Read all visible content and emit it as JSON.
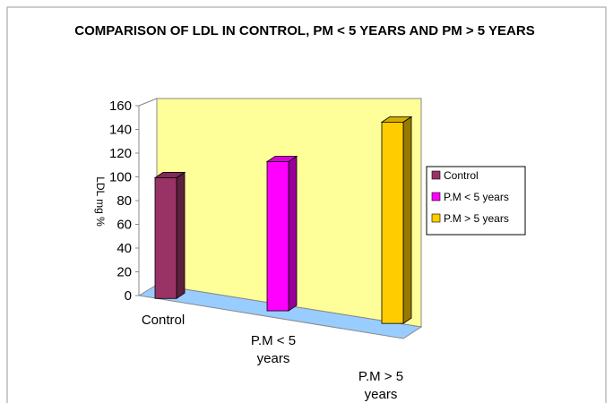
{
  "chart_data": {
    "type": "bar3d",
    "title": "COMPARISON OF LDL IN CONTROL, PM < 5 YEARS AND PM > 5 YEARS",
    "y_label": "LDL mg %",
    "categories": [
      "Control",
      "P.M < 5 years",
      "P.M > 5 years"
    ],
    "values": [
      100,
      115,
      145
    ],
    "colors": [
      "#993366",
      "#ff00ff",
      "#ffcc00"
    ],
    "ylim": [
      0,
      160
    ],
    "yticks": [
      0,
      20,
      40,
      60,
      80,
      100,
      120,
      140,
      160
    ],
    "legend": "right"
  }
}
